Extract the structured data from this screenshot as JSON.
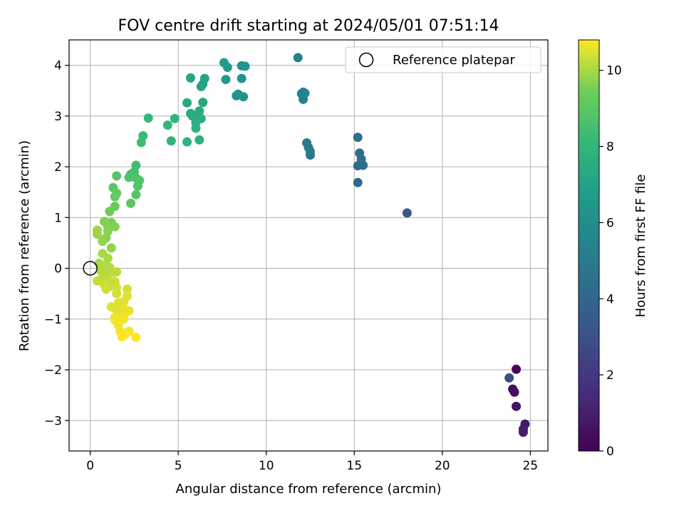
{
  "chart_data": {
    "type": "scatter",
    "title": "FOV centre drift starting at 2024/05/01 07:51:14",
    "xlabel": "Angular distance from reference (arcmin)",
    "ylabel": "Rotation from reference (arcmin)",
    "xlim": [
      -1.2,
      26
    ],
    "ylim": [
      -3.6,
      4.5
    ],
    "x_ticks": [
      0,
      5,
      10,
      15,
      20,
      25
    ],
    "y_ticks": [
      -3,
      -2,
      -1,
      0,
      1,
      2,
      3,
      4
    ],
    "grid": true,
    "legend": {
      "position": "top-right",
      "entries": [
        {
          "label": "Reference platepar",
          "marker": "open-circle"
        }
      ]
    },
    "reference_point": {
      "x": 0,
      "y": 0
    },
    "colorbar": {
      "label": "Hours from first FF file",
      "colormap": "viridis",
      "range": [
        0,
        10.8
      ],
      "ticks": [
        0,
        2,
        4,
        6,
        8,
        10
      ]
    },
    "points": [
      {
        "x": 24.2,
        "y": -1.99,
        "c": 0.2
      },
      {
        "x": 24.0,
        "y": -2.38,
        "c": 0.4
      },
      {
        "x": 24.1,
        "y": -2.44,
        "c": 0.5
      },
      {
        "x": 24.2,
        "y": -2.72,
        "c": 0.6
      },
      {
        "x": 24.7,
        "y": -3.07,
        "c": 0.8
      },
      {
        "x": 24.6,
        "y": -3.17,
        "c": 0.9
      },
      {
        "x": 24.6,
        "y": -3.23,
        "c": 1.0
      },
      {
        "x": 23.8,
        "y": -2.16,
        "c": 2.9
      },
      {
        "x": 18.0,
        "y": 1.09,
        "c": 3.3
      },
      {
        "x": 15.2,
        "y": 1.69,
        "c": 4.1
      },
      {
        "x": 15.2,
        "y": 2.02,
        "c": 4.2
      },
      {
        "x": 15.5,
        "y": 2.03,
        "c": 4.2
      },
      {
        "x": 15.4,
        "y": 2.15,
        "c": 4.3
      },
      {
        "x": 15.3,
        "y": 2.27,
        "c": 4.3
      },
      {
        "x": 15.2,
        "y": 2.58,
        "c": 4.4
      },
      {
        "x": 12.5,
        "y": 2.23,
        "c": 5.0
      },
      {
        "x": 12.5,
        "y": 2.3,
        "c": 5.0
      },
      {
        "x": 12.4,
        "y": 2.38,
        "c": 5.1
      },
      {
        "x": 12.3,
        "y": 2.47,
        "c": 5.1
      },
      {
        "x": 12.1,
        "y": 3.33,
        "c": 5.4
      },
      {
        "x": 12.0,
        "y": 3.44,
        "c": 5.4
      },
      {
        "x": 12.1,
        "y": 3.47,
        "c": 5.5
      },
      {
        "x": 12.2,
        "y": 3.45,
        "c": 5.5
      },
      {
        "x": 11.8,
        "y": 4.15,
        "c": 5.3
      },
      {
        "x": 8.7,
        "y": 3.38,
        "c": 6.2
      },
      {
        "x": 8.3,
        "y": 3.4,
        "c": 6.2
      },
      {
        "x": 8.4,
        "y": 3.43,
        "c": 6.3
      },
      {
        "x": 8.6,
        "y": 3.74,
        "c": 6.3
      },
      {
        "x": 8.6,
        "y": 3.99,
        "c": 6.4
      },
      {
        "x": 8.8,
        "y": 3.98,
        "c": 6.4
      },
      {
        "x": 7.7,
        "y": 3.72,
        "c": 6.5
      },
      {
        "x": 7.8,
        "y": 3.96,
        "c": 6.6
      },
      {
        "x": 7.6,
        "y": 4.05,
        "c": 6.6
      },
      {
        "x": 6.5,
        "y": 3.74,
        "c": 7.0
      },
      {
        "x": 6.3,
        "y": 3.58,
        "c": 7.0
      },
      {
        "x": 6.4,
        "y": 3.63,
        "c": 7.1
      },
      {
        "x": 5.7,
        "y": 3.75,
        "c": 7.1
      },
      {
        "x": 5.5,
        "y": 3.26,
        "c": 7.3
      },
      {
        "x": 6.4,
        "y": 3.27,
        "c": 7.3
      },
      {
        "x": 6.2,
        "y": 3.1,
        "c": 7.4
      },
      {
        "x": 5.7,
        "y": 3.05,
        "c": 7.4
      },
      {
        "x": 5.8,
        "y": 3.0,
        "c": 7.5
      },
      {
        "x": 6.1,
        "y": 2.95,
        "c": 7.5
      },
      {
        "x": 6.3,
        "y": 2.95,
        "c": 7.6
      },
      {
        "x": 6.0,
        "y": 2.87,
        "c": 7.6
      },
      {
        "x": 6.0,
        "y": 2.76,
        "c": 7.7
      },
      {
        "x": 6.2,
        "y": 2.53,
        "c": 7.7
      },
      {
        "x": 5.5,
        "y": 2.49,
        "c": 7.8
      },
      {
        "x": 4.6,
        "y": 2.51,
        "c": 7.9
      },
      {
        "x": 4.8,
        "y": 2.95,
        "c": 7.9
      },
      {
        "x": 4.4,
        "y": 2.82,
        "c": 8.0
      },
      {
        "x": 3.3,
        "y": 2.96,
        "c": 8.1
      },
      {
        "x": 3.0,
        "y": 2.61,
        "c": 8.2
      },
      {
        "x": 2.9,
        "y": 2.48,
        "c": 8.3
      },
      {
        "x": 2.6,
        "y": 2.03,
        "c": 8.4
      },
      {
        "x": 2.5,
        "y": 1.9,
        "c": 8.5
      },
      {
        "x": 2.3,
        "y": 1.85,
        "c": 8.6
      },
      {
        "x": 2.2,
        "y": 1.79,
        "c": 8.7
      },
      {
        "x": 2.6,
        "y": 1.78,
        "c": 8.7
      },
      {
        "x": 2.8,
        "y": 1.73,
        "c": 8.8
      },
      {
        "x": 2.7,
        "y": 1.62,
        "c": 8.8
      },
      {
        "x": 2.6,
        "y": 1.45,
        "c": 8.9
      },
      {
        "x": 2.3,
        "y": 1.28,
        "c": 9.0
      },
      {
        "x": 1.5,
        "y": 1.82,
        "c": 8.9
      },
      {
        "x": 1.3,
        "y": 1.59,
        "c": 9.0
      },
      {
        "x": 1.5,
        "y": 1.48,
        "c": 9.1
      },
      {
        "x": 1.4,
        "y": 1.41,
        "c": 9.2
      },
      {
        "x": 1.4,
        "y": 1.22,
        "c": 9.3
      },
      {
        "x": 1.1,
        "y": 1.12,
        "c": 9.4
      },
      {
        "x": 1.2,
        "y": 0.9,
        "c": 9.5
      },
      {
        "x": 1.4,
        "y": 0.82,
        "c": 9.6
      },
      {
        "x": 1.0,
        "y": 0.82,
        "c": 9.6
      },
      {
        "x": 0.8,
        "y": 0.92,
        "c": 9.6
      },
      {
        "x": 1.0,
        "y": 0.73,
        "c": 9.7
      },
      {
        "x": 0.9,
        "y": 0.6,
        "c": 9.7
      },
      {
        "x": 0.7,
        "y": 0.53,
        "c": 9.8
      },
      {
        "x": 1.2,
        "y": 0.4,
        "c": 9.8
      },
      {
        "x": 0.4,
        "y": 0.75,
        "c": 9.9
      },
      {
        "x": 0.4,
        "y": 0.67,
        "c": 9.9
      },
      {
        "x": 0.7,
        "y": 0.29,
        "c": 10.0
      },
      {
        "x": 1.0,
        "y": 0.2,
        "c": 10.0
      },
      {
        "x": 0.5,
        "y": 0.1,
        "c": 10.0
      },
      {
        "x": 0.8,
        "y": 0.05,
        "c": 10.1
      },
      {
        "x": 1.1,
        "y": 0.02,
        "c": 10.1
      },
      {
        "x": 0.6,
        "y": -0.05,
        "c": 10.1
      },
      {
        "x": 0.9,
        "y": -0.1,
        "c": 10.1
      },
      {
        "x": 1.3,
        "y": -0.08,
        "c": 10.2
      },
      {
        "x": 1.5,
        "y": -0.07,
        "c": 10.2
      },
      {
        "x": 0.7,
        "y": -0.18,
        "c": 10.2
      },
      {
        "x": 1.0,
        "y": -0.22,
        "c": 10.2
      },
      {
        "x": 1.4,
        "y": -0.26,
        "c": 10.3
      },
      {
        "x": 0.4,
        "y": -0.25,
        "c": 10.3
      },
      {
        "x": 0.8,
        "y": -0.32,
        "c": 10.3
      },
      {
        "x": 1.2,
        "y": -0.35,
        "c": 10.3
      },
      {
        "x": 1.5,
        "y": -0.38,
        "c": 10.4
      },
      {
        "x": 0.9,
        "y": -0.41,
        "c": 10.4
      },
      {
        "x": 1.5,
        "y": -0.5,
        "c": 10.4
      },
      {
        "x": 2.1,
        "y": -0.41,
        "c": 10.4
      },
      {
        "x": 2.1,
        "y": -0.55,
        "c": 10.5
      },
      {
        "x": 1.9,
        "y": -0.66,
        "c": 10.5
      },
      {
        "x": 1.6,
        "y": -0.68,
        "c": 10.5
      },
      {
        "x": 1.2,
        "y": -0.76,
        "c": 10.5
      },
      {
        "x": 1.5,
        "y": -0.82,
        "c": 10.5
      },
      {
        "x": 1.9,
        "y": -0.79,
        "c": 10.6
      },
      {
        "x": 2.2,
        "y": -0.84,
        "c": 10.6
      },
      {
        "x": 2.0,
        "y": -0.88,
        "c": 10.6
      },
      {
        "x": 1.7,
        "y": -0.92,
        "c": 10.6
      },
      {
        "x": 1.4,
        "y": -0.97,
        "c": 10.6
      },
      {
        "x": 1.9,
        "y": -1.0,
        "c": 10.7
      },
      {
        "x": 1.4,
        "y": -1.02,
        "c": 10.7
      },
      {
        "x": 1.6,
        "y": -1.12,
        "c": 10.7
      },
      {
        "x": 1.7,
        "y": -1.24,
        "c": 10.7
      },
      {
        "x": 2.2,
        "y": -1.24,
        "c": 10.7
      },
      {
        "x": 2.0,
        "y": -1.3,
        "c": 10.8
      },
      {
        "x": 1.8,
        "y": -1.35,
        "c": 10.8
      },
      {
        "x": 2.6,
        "y": -1.36,
        "c": 10.8
      }
    ]
  }
}
